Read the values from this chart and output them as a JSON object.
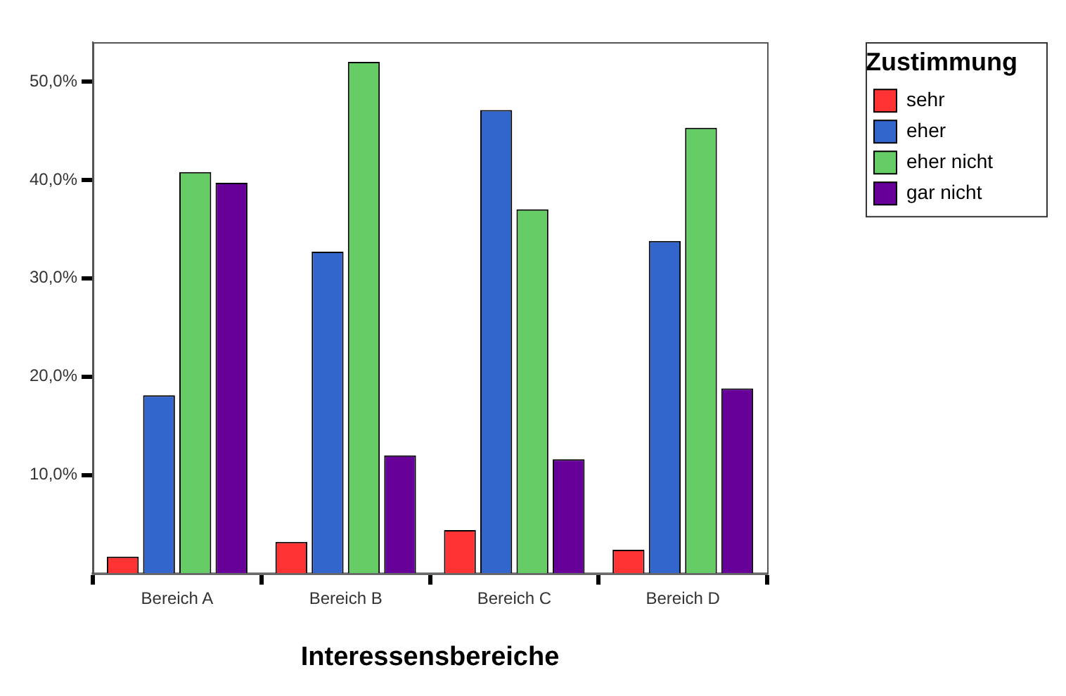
{
  "chart_data": {
    "type": "bar",
    "xlabel": "Interessensbereiche",
    "legend_title": "Zustimmung",
    "categories": [
      "Bereich A",
      "Bereich B",
      "Bereich C",
      "Bereich D"
    ],
    "series": [
      {
        "name": "sehr",
        "color": "#ff3333",
        "values": [
          1.7,
          3.2,
          4.4,
          2.4
        ]
      },
      {
        "name": "eher",
        "color": "#3366cc",
        "values": [
          18.1,
          32.7,
          47.1,
          33.8
        ]
      },
      {
        "name": "eher nicht",
        "color": "#66cc66",
        "values": [
          40.8,
          52.0,
          37.0,
          45.3
        ]
      },
      {
        "name": "gar nicht",
        "color": "#660099",
        "values": [
          39.7,
          12.0,
          11.6,
          18.8
        ]
      }
    ],
    "ylim": [
      0,
      54
    ],
    "yticks": [
      {
        "value": 10,
        "label": "10,0%"
      },
      {
        "value": 20,
        "label": "20,0%"
      },
      {
        "value": 30,
        "label": "30,0%"
      },
      {
        "value": 40,
        "label": "40,0%"
      },
      {
        "value": 50,
        "label": "50,0%"
      }
    ],
    "grid": false,
    "legend": "top right"
  }
}
